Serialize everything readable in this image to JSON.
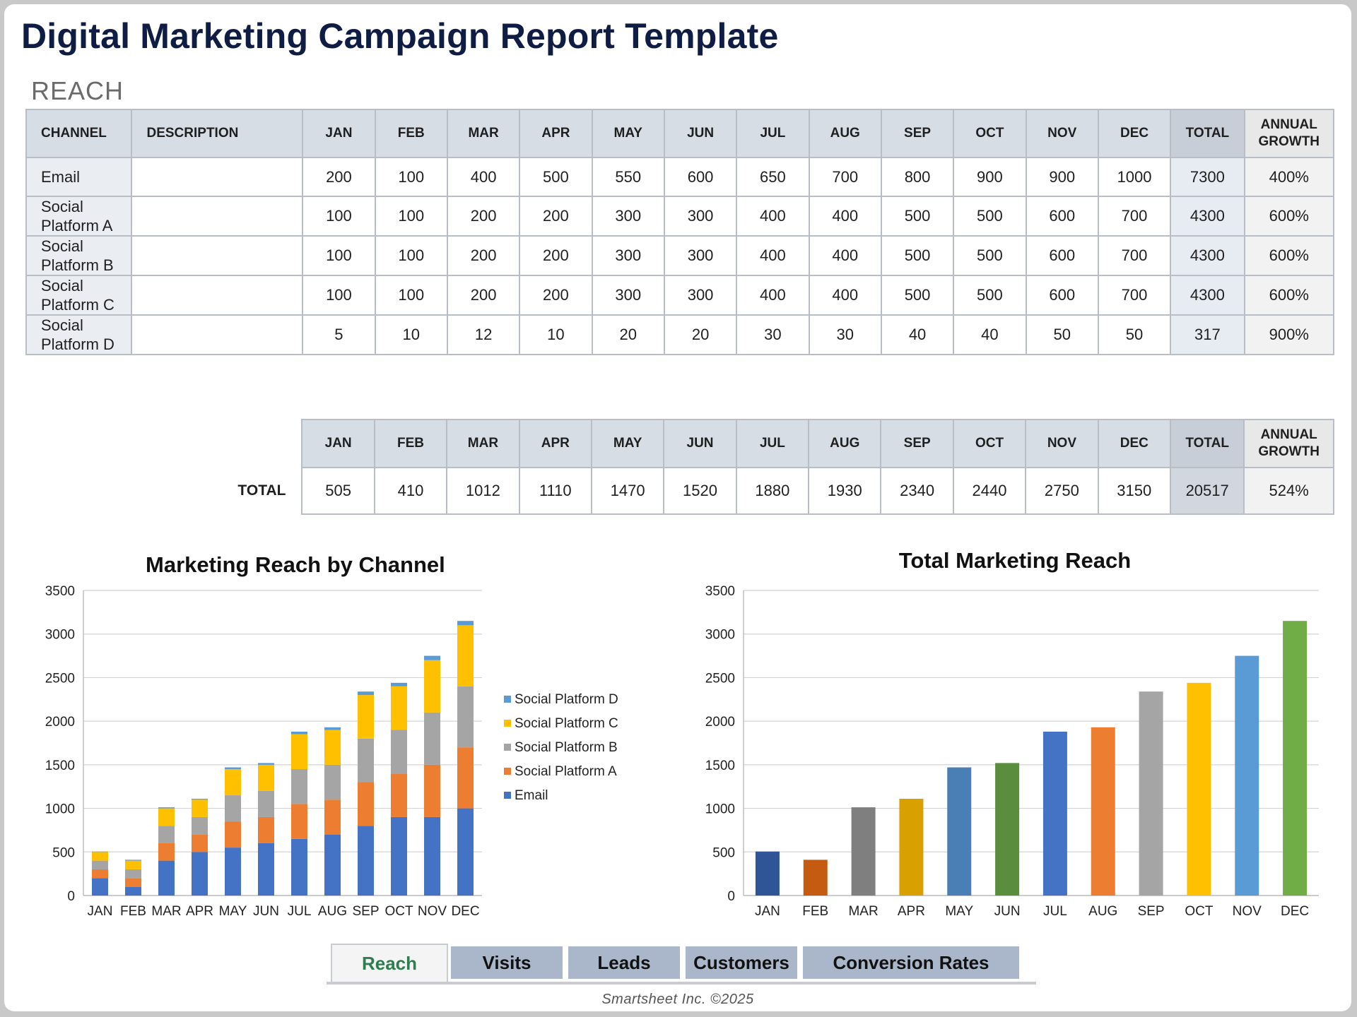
{
  "title": "Digital Marketing Campaign Report Template",
  "section": "REACH",
  "table": {
    "headers": [
      "CHANNEL",
      "DESCRIPTION",
      "JAN",
      "FEB",
      "MAR",
      "APR",
      "MAY",
      "JUN",
      "JUL",
      "AUG",
      "SEP",
      "OCT",
      "NOV",
      "DEC",
      "TOTAL"
    ],
    "growth_header": [
      "ANNUAL",
      "GROWTH"
    ],
    "rows": [
      {
        "channel": [
          "Email"
        ],
        "description": "",
        "values": [
          "200",
          "100",
          "400",
          "500",
          "550",
          "600",
          "650",
          "700",
          "800",
          "900",
          "900",
          "1000"
        ],
        "total": "7300",
        "growth": "400%"
      },
      {
        "channel": [
          "Social",
          "Platform A"
        ],
        "description": "",
        "values": [
          "100",
          "100",
          "200",
          "200",
          "300",
          "300",
          "400",
          "400",
          "500",
          "500",
          "600",
          "700"
        ],
        "total": "4300",
        "growth": "600%"
      },
      {
        "channel": [
          "Social",
          "Platform B"
        ],
        "description": "",
        "values": [
          "100",
          "100",
          "200",
          "200",
          "300",
          "300",
          "400",
          "400",
          "500",
          "500",
          "600",
          "700"
        ],
        "total": "4300",
        "growth": "600%"
      },
      {
        "channel": [
          "Social",
          "Platform C"
        ],
        "description": "",
        "values": [
          "100",
          "100",
          "200",
          "200",
          "300",
          "300",
          "400",
          "400",
          "500",
          "500",
          "600",
          "700"
        ],
        "total": "4300",
        "growth": "600%"
      },
      {
        "channel": [
          "Social",
          "Platform D"
        ],
        "description": "",
        "values": [
          "5",
          "10",
          "12",
          "10",
          "20",
          "20",
          "30",
          "30",
          "40",
          "40",
          "50",
          "50"
        ],
        "total": "317",
        "growth": "900%"
      }
    ]
  },
  "totals": {
    "label": "TOTAL",
    "headers": [
      "JAN",
      "FEB",
      "MAR",
      "APR",
      "MAY",
      "JUN",
      "JUL",
      "AUG",
      "SEP",
      "OCT",
      "NOV",
      "DEC",
      "TOTAL"
    ],
    "growth_header": [
      "ANNUAL",
      "GROWTH"
    ],
    "values": [
      "505",
      "410",
      "1012",
      "1110",
      "1470",
      "1520",
      "1880",
      "1930",
      "2340",
      "2440",
      "2750",
      "3150"
    ],
    "total": "20517",
    "growth": "524%"
  },
  "chart_data": [
    {
      "type": "bar",
      "stacked": true,
      "title": "Marketing Reach by Channel",
      "categories": [
        "JAN",
        "FEB",
        "MAR",
        "APR",
        "MAY",
        "JUN",
        "JUL",
        "AUG",
        "SEP",
        "OCT",
        "NOV",
        "DEC"
      ],
      "series": [
        {
          "name": "Email",
          "color": "#4472c4",
          "values": [
            200,
            100,
            400,
            500,
            550,
            600,
            650,
            700,
            800,
            900,
            900,
            1000
          ]
        },
        {
          "name": "Social Platform A",
          "color": "#ed7d31",
          "values": [
            100,
            100,
            200,
            200,
            300,
            300,
            400,
            400,
            500,
            500,
            600,
            700
          ]
        },
        {
          "name": "Social Platform B",
          "color": "#a5a5a5",
          "values": [
            100,
            100,
            200,
            200,
            300,
            300,
            400,
            400,
            500,
            500,
            600,
            700
          ]
        },
        {
          "name": "Social Platform C",
          "color": "#ffc000",
          "values": [
            100,
            100,
            200,
            200,
            300,
            300,
            400,
            400,
            500,
            500,
            600,
            700
          ]
        },
        {
          "name": "Social Platform D",
          "color": "#5b9bd5",
          "values": [
            5,
            10,
            12,
            10,
            20,
            20,
            30,
            30,
            40,
            40,
            50,
            50
          ]
        }
      ],
      "legend": [
        "Social Platform D",
        "Social Platform C",
        "Social Platform B",
        "Social Platform A",
        "Email"
      ],
      "yticks": [
        "0",
        "500",
        "1000",
        "1500",
        "2000",
        "2500",
        "3000",
        "3500"
      ],
      "ylim": [
        0,
        3500
      ],
      "xlabel": "",
      "ylabel": "",
      "grid": true,
      "legend_position": "right"
    },
    {
      "type": "bar",
      "title": "Total Marketing Reach",
      "categories": [
        "JAN",
        "FEB",
        "MAR",
        "APR",
        "MAY",
        "JUN",
        "JUL",
        "AUG",
        "SEP",
        "OCT",
        "NOV",
        "DEC"
      ],
      "values": [
        505,
        410,
        1012,
        1110,
        1470,
        1520,
        1880,
        1930,
        2340,
        2440,
        2750,
        3150
      ],
      "colors": [
        "#2f5597",
        "#c55a11",
        "#7f7f7f",
        "#d8a000",
        "#4a7fb5",
        "#5b8e3c",
        "#4472c4",
        "#ed7d31",
        "#a5a5a5",
        "#ffc000",
        "#5b9bd5",
        "#70ad47"
      ],
      "yticks": [
        "0",
        "500",
        "1000",
        "1500",
        "2000",
        "2500",
        "3000",
        "3500"
      ],
      "ylim": [
        0,
        3500
      ],
      "xlabel": "",
      "ylabel": "",
      "grid": true
    }
  ],
  "tabs": [
    {
      "label": "Reach",
      "active": true
    },
    {
      "label": "Visits",
      "active": false
    },
    {
      "label": "Leads",
      "active": false
    },
    {
      "label": "Customers",
      "active": false
    },
    {
      "label": "Conversion Rates",
      "active": false
    }
  ],
  "footer": "Smartsheet Inc. ©2025"
}
